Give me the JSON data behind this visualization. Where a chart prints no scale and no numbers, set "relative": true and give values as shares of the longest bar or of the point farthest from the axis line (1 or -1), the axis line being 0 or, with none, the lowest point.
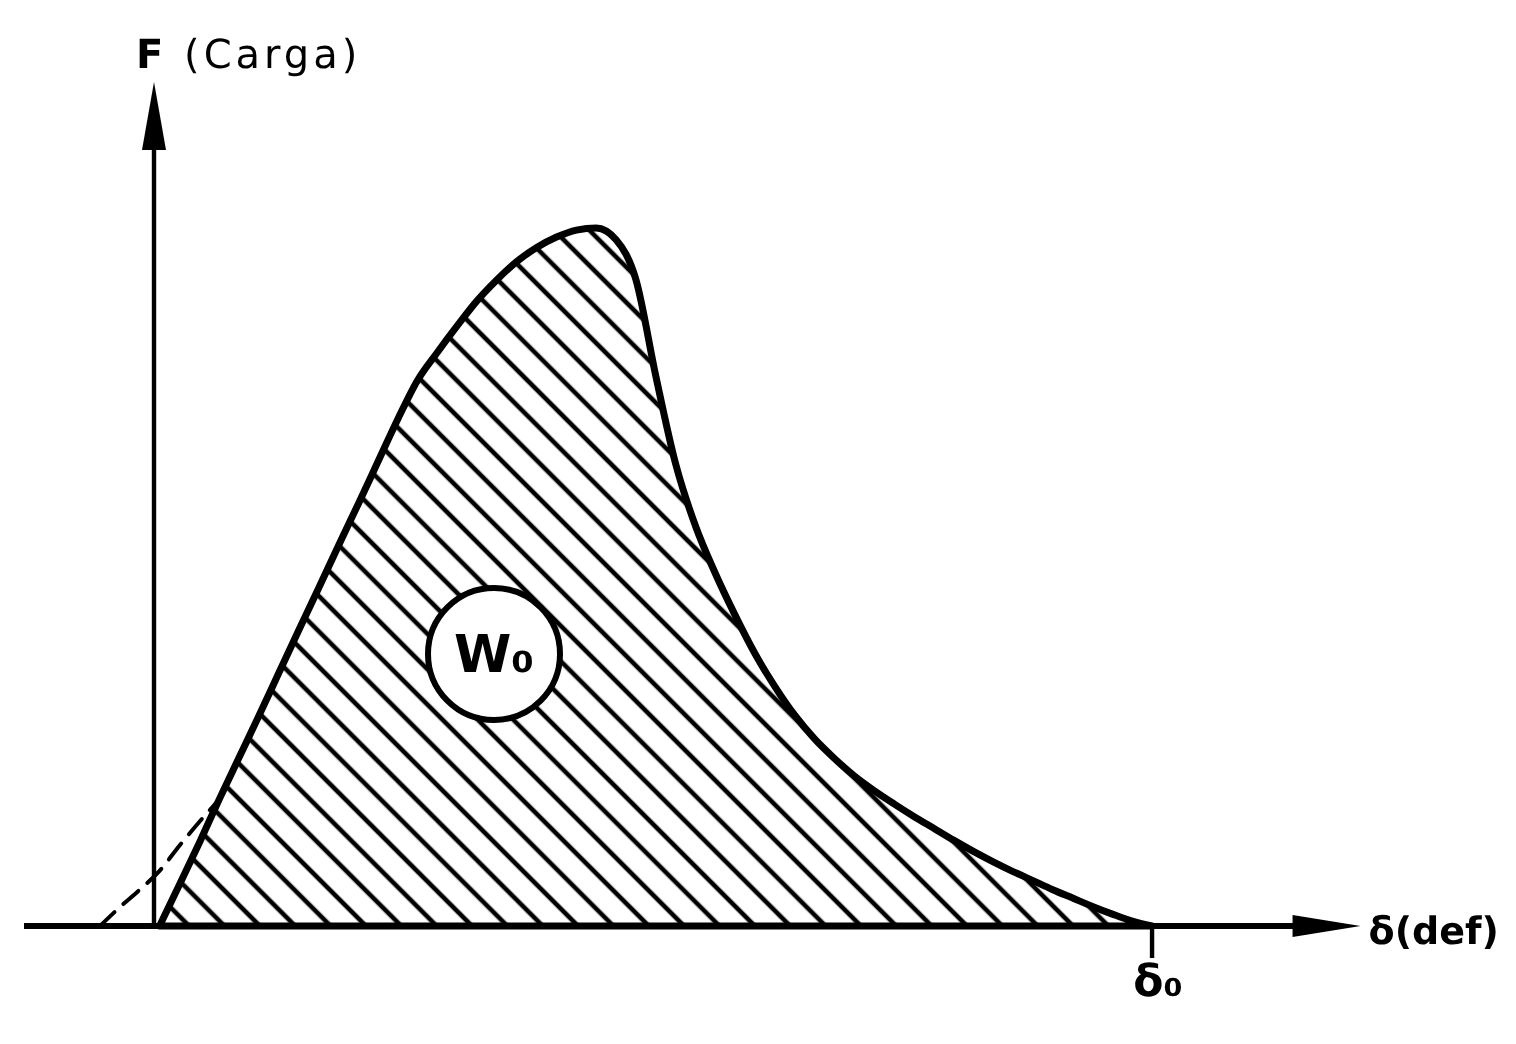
{
  "chart_data": {
    "type": "area",
    "relative": true,
    "ylabel": "F (Carga)",
    "xlabel": "δ(def)",
    "annotations": [
      "W₀",
      "δ₀"
    ],
    "categories": [
      null,
      null,
      null,
      null,
      null,
      null,
      null,
      null,
      null,
      null,
      null,
      null,
      null,
      null,
      null,
      null,
      null,
      null,
      null,
      null,
      null,
      null,
      null,
      null,
      null,
      null,
      null,
      null,
      null,
      null,
      null,
      null,
      null,
      null,
      null,
      null,
      null,
      null,
      null,
      null,
      null,
      null,
      null,
      null,
      null,
      null,
      null,
      null,
      null,
      null,
      null,
      null,
      null,
      null,
      null,
      null,
      null,
      null,
      null,
      null,
      null,
      null,
      null,
      null
    ],
    "series": [
      {
        "color": "#000000",
        "values": [
          null,
          null,
          null,
          0,
          0.059,
          0.119,
          0.181,
          0.241,
          0.301,
          0.362,
          0.423,
          0.483,
          0.544,
          0.604,
          0.665,
          0.726,
          0.782,
          0.822,
          0.86,
          0.896,
          0.926,
          0.952,
          0.972,
          0.987,
          0.997,
          1,
          0.983,
          0.926,
          0.788,
          0.662,
          0.573,
          0.505,
          0.445,
          0.39,
          0.343,
          0.302,
          0.268,
          0.24,
          0.215,
          0.194,
          0.175,
          0.157,
          0.14,
          0.123,
          0.107,
          0.092,
          0.078,
          0.065,
          0.052,
          0.04,
          0.028,
          0.017,
          0.007,
          0,
          null,
          null,
          null,
          null,
          null,
          null,
          null,
          null,
          null,
          null
        ]
      },
      {
        "type": "line",
        "color": "#000000",
        "line_style": "dashed",
        "values": [
          0,
          0.027,
          0.052,
          0.079,
          0.115,
          0.149,
          0.181,
          null,
          null,
          null,
          null,
          null,
          null,
          null,
          null,
          null,
          null,
          null,
          null,
          null,
          null,
          null,
          null,
          null,
          null,
          null,
          null,
          null,
          null,
          null,
          null,
          null,
          null,
          null,
          null,
          null,
          null,
          null,
          null,
          null,
          null,
          null,
          null,
          null,
          null,
          null,
          null,
          null,
          null,
          null,
          null,
          null,
          null,
          null,
          null,
          null,
          null,
          null,
          null,
          null,
          null,
          null,
          null,
          null
        ]
      }
    ]
  }
}
